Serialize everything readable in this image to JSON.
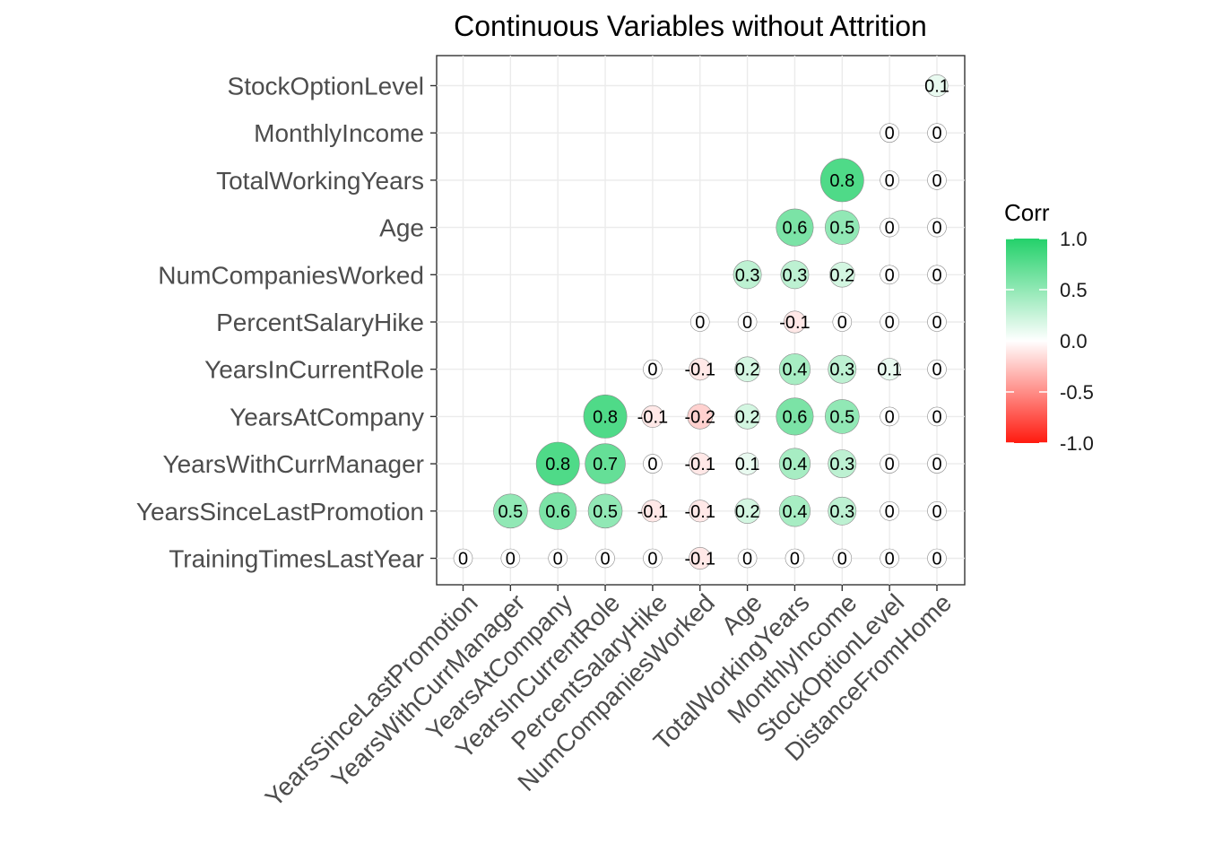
{
  "colors": {
    "high": "#23d16a",
    "mid": "#ffffff",
    "low": "#ff1a0f",
    "grid": "#ebebeb",
    "axis_text": "#4d4d4d"
  },
  "chart_data": {
    "type": "scatter",
    "subtype": "correlation-circle-matrix",
    "title": "Continuous Variables without Attrition",
    "x_categories": [
      "YearsSinceLastPromotion",
      "YearsWithCurrManager",
      "YearsAtCompany",
      "YearsInCurrentRole",
      "PercentSalaryHike",
      "NumCompaniesWorked",
      "Age",
      "TotalWorkingYears",
      "MonthlyIncome",
      "StockOptionLevel",
      "DistanceFromHome"
    ],
    "y_categories": [
      "TrainingTimesLastYear",
      "YearsSinceLastPromotion",
      "YearsWithCurrManager",
      "YearsAtCompany",
      "YearsInCurrentRole",
      "PercentSalaryHike",
      "NumCompaniesWorked",
      "Age",
      "TotalWorkingYears",
      "MonthlyIncome",
      "StockOptionLevel"
    ],
    "matrix": [
      [
        0,
        0,
        0,
        0,
        0,
        -0.1,
        0,
        0,
        0,
        0,
        0
      ],
      [
        null,
        0.5,
        0.6,
        0.5,
        -0.1,
        -0.1,
        0.2,
        0.4,
        0.3,
        0,
        0
      ],
      [
        null,
        null,
        0.8,
        0.7,
        0,
        -0.1,
        0.1,
        0.4,
        0.3,
        0,
        0
      ],
      [
        null,
        null,
        null,
        0.8,
        -0.1,
        -0.2,
        0.2,
        0.6,
        0.5,
        0,
        0
      ],
      [
        null,
        null,
        null,
        null,
        0,
        -0.1,
        0.2,
        0.4,
        0.3,
        0.1,
        0
      ],
      [
        null,
        null,
        null,
        null,
        null,
        0,
        0,
        -0.1,
        0,
        0,
        0
      ],
      [
        null,
        null,
        null,
        null,
        null,
        null,
        0.3,
        0.3,
        0.2,
        0,
        0
      ],
      [
        null,
        null,
        null,
        null,
        null,
        null,
        null,
        0.6,
        0.5,
        0,
        0
      ],
      [
        null,
        null,
        null,
        null,
        null,
        null,
        null,
        null,
        0.8,
        0,
        0
      ],
      [
        null,
        null,
        null,
        null,
        null,
        null,
        null,
        null,
        null,
        0,
        0
      ],
      [
        null,
        null,
        null,
        null,
        null,
        null,
        null,
        null,
        null,
        null,
        0.1
      ]
    ],
    "legend": {
      "title": "Corr",
      "ticks": [
        1.0,
        0.5,
        0.0,
        -0.5,
        -1.0
      ],
      "tick_labels": [
        "1.0",
        "0.5",
        "0.0",
        "-0.5",
        "-1.0"
      ],
      "placement": "right"
    },
    "range": [
      -1,
      1
    ],
    "grid": true
  }
}
